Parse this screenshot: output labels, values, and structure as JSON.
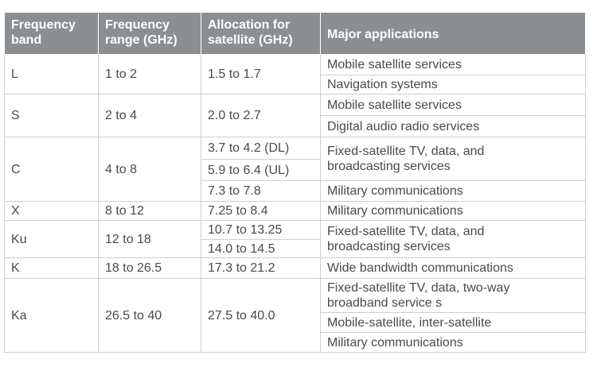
{
  "table": {
    "header": [
      "Frequency band",
      "Frequency range (GHz)",
      "Allocation for satellite (GHz)",
      "Major applications"
    ],
    "rows": [
      {
        "band": "L",
        "range": "1 to 2",
        "allocations": [
          "1.5 to 1.7"
        ],
        "applications": [
          "Mobile satellite services",
          "Navigation systems"
        ]
      },
      {
        "band": "S",
        "range": "2 to 4",
        "allocations": [
          "2.0 to 2.7"
        ],
        "applications": [
          "Mobile satellite services",
          "Digital audio radio services"
        ]
      },
      {
        "band": "C",
        "range": "4 to 8",
        "allocations": [
          "3.7 to 4.2 (DL)",
          "5.9 to 6.4 (UL)",
          "7.3 to 7.8"
        ],
        "applications": [
          "Fixed-satellite TV, data, and broadcasting services",
          "Military communications"
        ]
      },
      {
        "band": "X",
        "range": "8 to 12",
        "allocations": [
          "7.25 to 8.4"
        ],
        "applications": [
          "Military communications"
        ]
      },
      {
        "band": "Ku",
        "range": "12 to 18",
        "allocations": [
          "10.7 to 13.25",
          "14.0 to 14.5"
        ],
        "applications": [
          "Fixed-satellite TV, data, and broadcasting services"
        ]
      },
      {
        "band": "K",
        "range": "18 to 26.5",
        "allocations": [
          "17.3 to 21.2"
        ],
        "applications": [
          "Wide bandwidth communications"
        ]
      },
      {
        "band": "Ka",
        "range": "26.5 to 40",
        "allocations": [
          "27.5 to 40.0"
        ],
        "applications": [
          "Fixed-satellite TV, data, two-way broadband service s",
          "Mobile-satellite, inter-satellite",
          "Military communications"
        ]
      }
    ]
  }
}
